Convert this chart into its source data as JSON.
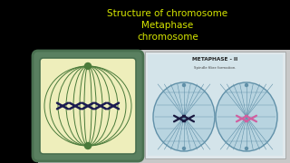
{
  "bg_color": "#000000",
  "title_line1": "Structure of chromosome",
  "title_line2": "Metaphase",
  "title_line3": "chromosome",
  "title_color": "#d8e800",
  "title_fontsize": 7.5,
  "top_bar_height": 55,
  "bottom_bg": "#c8c8c8",
  "left_panel_bg": "#eeeebb",
  "left_panel_border_outer": "#4a7050",
  "left_panel_border_inner": "#5a8060",
  "spindle_color": "#4a7a3a",
  "chromosome_color": "#1a1a50",
  "right_panel_bg": "#e0e8ec",
  "right_panel_inner_bg": "#d4e4ea",
  "right_label": "METAPHASE - II",
  "right_sublabel": "Spindle fibre formation.",
  "circle_bg": "#b8d4e0",
  "circle_border": "#6090a8",
  "chr_dark": "#1a1a40",
  "chr_pink": "#d060a0"
}
